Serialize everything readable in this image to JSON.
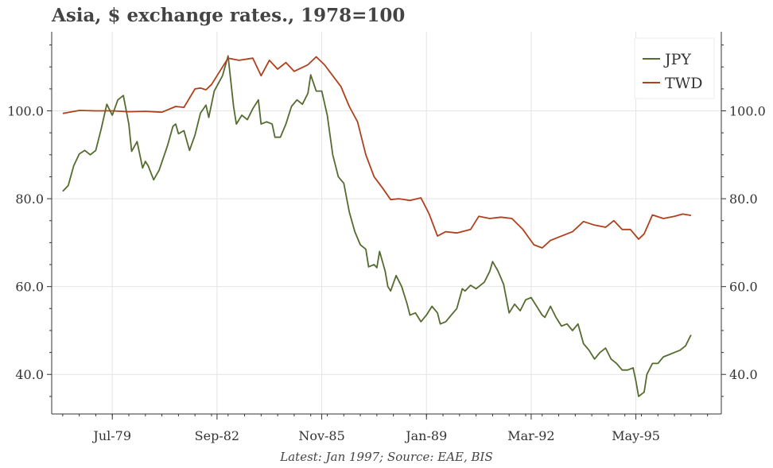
{
  "chart_data": {
    "type": "line",
    "title": "Asia, $ exchange rates., 1978=100",
    "xlabel": "",
    "ylabel": "",
    "x_tick_labels": [
      "Jul-79",
      "Sep-82",
      "Nov-85",
      "Jan-89",
      "Mar-92",
      "May-95"
    ],
    "x_tick_dates": [
      "1979-07",
      "1982-09",
      "1985-11",
      "1989-01",
      "1992-03",
      "1995-05"
    ],
    "xlim": [
      "1977-09",
      "1997-12"
    ],
    "y_tick_labels": [
      "40.0",
      "60.0",
      "80.0",
      "100.0"
    ],
    "ylim": [
      31,
      118
    ],
    "grid": true,
    "legend_position": "top-right",
    "series": [
      {
        "name": "JPY",
        "color": "#556b2f",
        "points": [
          [
            "1978-01",
            81.7
          ],
          [
            "1978-03",
            83.0
          ],
          [
            "1978-05",
            87.5
          ],
          [
            "1978-07",
            90.2
          ],
          [
            "1978-09",
            91.0
          ],
          [
            "1978-11",
            90.0
          ],
          [
            "1979-01",
            91.0
          ],
          [
            "1979-03",
            96.0
          ],
          [
            "1979-05",
            101.5
          ],
          [
            "1979-07",
            99.0
          ],
          [
            "1979-09",
            102.5
          ],
          [
            "1979-11",
            103.5
          ],
          [
            "1980-01",
            97.0
          ],
          [
            "1980-02",
            90.8
          ],
          [
            "1980-04",
            93.0
          ],
          [
            "1980-06",
            87.0
          ],
          [
            "1980-07",
            88.5
          ],
          [
            "1980-08",
            87.5
          ],
          [
            "1980-10",
            84.3
          ],
          [
            "1980-12",
            86.5
          ],
          [
            "1981-03",
            92.0
          ],
          [
            "1981-05",
            96.5
          ],
          [
            "1981-06",
            97.0
          ],
          [
            "1981-07",
            94.8
          ],
          [
            "1981-09",
            95.5
          ],
          [
            "1981-11",
            91.0
          ],
          [
            "1982-01",
            94.5
          ],
          [
            "1982-03",
            99.5
          ],
          [
            "1982-05",
            101.3
          ],
          [
            "1982-06",
            98.5
          ],
          [
            "1982-08",
            104.5
          ],
          [
            "1982-11",
            108.0
          ],
          [
            "1983-01",
            112.5
          ],
          [
            "1983-03",
            101.0
          ],
          [
            "1983-04",
            97.0
          ],
          [
            "1983-06",
            99.0
          ],
          [
            "1983-08",
            98.0
          ],
          [
            "1983-10",
            100.5
          ],
          [
            "1983-12",
            102.5
          ],
          [
            "1984-01",
            97.0
          ],
          [
            "1984-03",
            97.5
          ],
          [
            "1984-05",
            97.0
          ],
          [
            "1984-06",
            94.0
          ],
          [
            "1984-08",
            94.0
          ],
          [
            "1984-10",
            97.0
          ],
          [
            "1984-12",
            101.0
          ],
          [
            "1985-02",
            102.5
          ],
          [
            "1985-04",
            101.5
          ],
          [
            "1985-06",
            104.0
          ],
          [
            "1985-07",
            108.2
          ],
          [
            "1985-09",
            104.5
          ],
          [
            "1985-11",
            104.5
          ],
          [
            "1986-01",
            99.0
          ],
          [
            "1986-03",
            90.0
          ],
          [
            "1986-05",
            85.0
          ],
          [
            "1986-07",
            83.5
          ],
          [
            "1986-09",
            77.0
          ],
          [
            "1986-11",
            72.5
          ],
          [
            "1987-01",
            69.5
          ],
          [
            "1987-03",
            68.5
          ],
          [
            "1987-04",
            64.5
          ],
          [
            "1987-06",
            65.0
          ],
          [
            "1987-07",
            64.3
          ],
          [
            "1987-08",
            68.0
          ],
          [
            "1987-10",
            63.5
          ],
          [
            "1987-11",
            60.0
          ],
          [
            "1987-12",
            59.0
          ],
          [
            "1988-02",
            62.5
          ],
          [
            "1988-04",
            60.0
          ],
          [
            "1988-06",
            56.0
          ],
          [
            "1988-07",
            53.5
          ],
          [
            "1988-09",
            54.0
          ],
          [
            "1988-11",
            52.0
          ],
          [
            "1989-01",
            53.5
          ],
          [
            "1989-03",
            55.5
          ],
          [
            "1989-05",
            54.0
          ],
          [
            "1989-06",
            51.5
          ],
          [
            "1989-08",
            52.0
          ],
          [
            "1989-10",
            53.5
          ],
          [
            "1989-12",
            55.0
          ],
          [
            "1990-02",
            59.5
          ],
          [
            "1990-03",
            59.0
          ],
          [
            "1990-05",
            60.3
          ],
          [
            "1990-07",
            59.5
          ],
          [
            "1990-08",
            60.0
          ],
          [
            "1990-10",
            61.0
          ],
          [
            "1990-12",
            63.5
          ],
          [
            "1991-01",
            65.7
          ],
          [
            "1991-03",
            63.5
          ],
          [
            "1991-05",
            60.5
          ],
          [
            "1991-07",
            54.0
          ],
          [
            "1991-09",
            56.0
          ],
          [
            "1991-11",
            54.5
          ],
          [
            "1992-01",
            57.0
          ],
          [
            "1992-03",
            57.5
          ],
          [
            "1992-05",
            55.5
          ],
          [
            "1992-07",
            53.5
          ],
          [
            "1992-08",
            53.0
          ],
          [
            "1992-10",
            55.5
          ],
          [
            "1992-12",
            53.0
          ],
          [
            "1993-02",
            51.0
          ],
          [
            "1993-04",
            51.5
          ],
          [
            "1993-06",
            50.0
          ],
          [
            "1993-08",
            51.5
          ],
          [
            "1993-10",
            47.0
          ],
          [
            "1993-12",
            45.5
          ],
          [
            "1994-02",
            43.5
          ],
          [
            "1994-04",
            45.0
          ],
          [
            "1994-06",
            46.0
          ],
          [
            "1994-08",
            43.5
          ],
          [
            "1994-10",
            42.5
          ],
          [
            "1994-12",
            41.0
          ],
          [
            "1995-02",
            41.0
          ],
          [
            "1995-04",
            41.5
          ],
          [
            "1995-05",
            38.5
          ],
          [
            "1995-06",
            35.0
          ],
          [
            "1995-08",
            36.0
          ],
          [
            "1995-09",
            40.0
          ],
          [
            "1995-11",
            42.5
          ],
          [
            "1996-01",
            42.5
          ],
          [
            "1996-03",
            44.0
          ],
          [
            "1996-05",
            44.5
          ],
          [
            "1996-07",
            45.0
          ],
          [
            "1996-09",
            45.5
          ],
          [
            "1996-11",
            46.5
          ],
          [
            "1997-01",
            49.0
          ]
        ]
      },
      {
        "name": "TWD",
        "color": "#b0401c",
        "points": [
          [
            "1978-01",
            99.4
          ],
          [
            "1978-07",
            100.1
          ],
          [
            "1979-01",
            100.0
          ],
          [
            "1979-07",
            100.0
          ],
          [
            "1980-01",
            99.8
          ],
          [
            "1980-07",
            99.9
          ],
          [
            "1981-01",
            99.7
          ],
          [
            "1981-06",
            101.0
          ],
          [
            "1981-09",
            100.8
          ],
          [
            "1982-01",
            105.0
          ],
          [
            "1982-03",
            105.2
          ],
          [
            "1982-05",
            104.8
          ],
          [
            "1982-07",
            106.0
          ],
          [
            "1982-09",
            108.0
          ],
          [
            "1983-01",
            112.0
          ],
          [
            "1983-05",
            111.5
          ],
          [
            "1983-10",
            112.0
          ],
          [
            "1984-01",
            108.0
          ],
          [
            "1984-04",
            111.5
          ],
          [
            "1984-07",
            109.5
          ],
          [
            "1984-10",
            111.0
          ],
          [
            "1985-01",
            109.0
          ],
          [
            "1985-06",
            110.5
          ],
          [
            "1985-09",
            112.3
          ],
          [
            "1985-12",
            110.5
          ],
          [
            "1986-03",
            108.0
          ],
          [
            "1986-06",
            105.5
          ],
          [
            "1986-09",
            101.0
          ],
          [
            "1986-12",
            97.5
          ],
          [
            "1987-03",
            90.0
          ],
          [
            "1987-06",
            85.0
          ],
          [
            "1987-09",
            82.5
          ],
          [
            "1987-12",
            79.8
          ],
          [
            "1988-03",
            80.0
          ],
          [
            "1988-07",
            79.6
          ],
          [
            "1988-11",
            80.2
          ],
          [
            "1989-02",
            76.5
          ],
          [
            "1989-05",
            71.5
          ],
          [
            "1989-08",
            72.5
          ],
          [
            "1989-12",
            72.2
          ],
          [
            "1990-05",
            73.0
          ],
          [
            "1990-08",
            76.0
          ],
          [
            "1990-12",
            75.5
          ],
          [
            "1991-04",
            75.8
          ],
          [
            "1991-08",
            75.5
          ],
          [
            "1991-12",
            73.0
          ],
          [
            "1992-04",
            69.5
          ],
          [
            "1992-07",
            68.8
          ],
          [
            "1992-10",
            70.5
          ],
          [
            "1993-02",
            71.5
          ],
          [
            "1993-06",
            72.5
          ],
          [
            "1993-10",
            74.8
          ],
          [
            "1994-02",
            74.0
          ],
          [
            "1994-06",
            73.5
          ],
          [
            "1994-09",
            75.0
          ],
          [
            "1994-12",
            73.0
          ],
          [
            "1995-03",
            73.0
          ],
          [
            "1995-06",
            70.8
          ],
          [
            "1995-08",
            72.0
          ],
          [
            "1995-11",
            76.3
          ],
          [
            "1996-03",
            75.5
          ],
          [
            "1996-07",
            76.0
          ],
          [
            "1996-10",
            76.5
          ],
          [
            "1997-01",
            76.2
          ]
        ]
      }
    ]
  },
  "footnote": "Latest: Jan 1997; Source: EAE, BIS"
}
